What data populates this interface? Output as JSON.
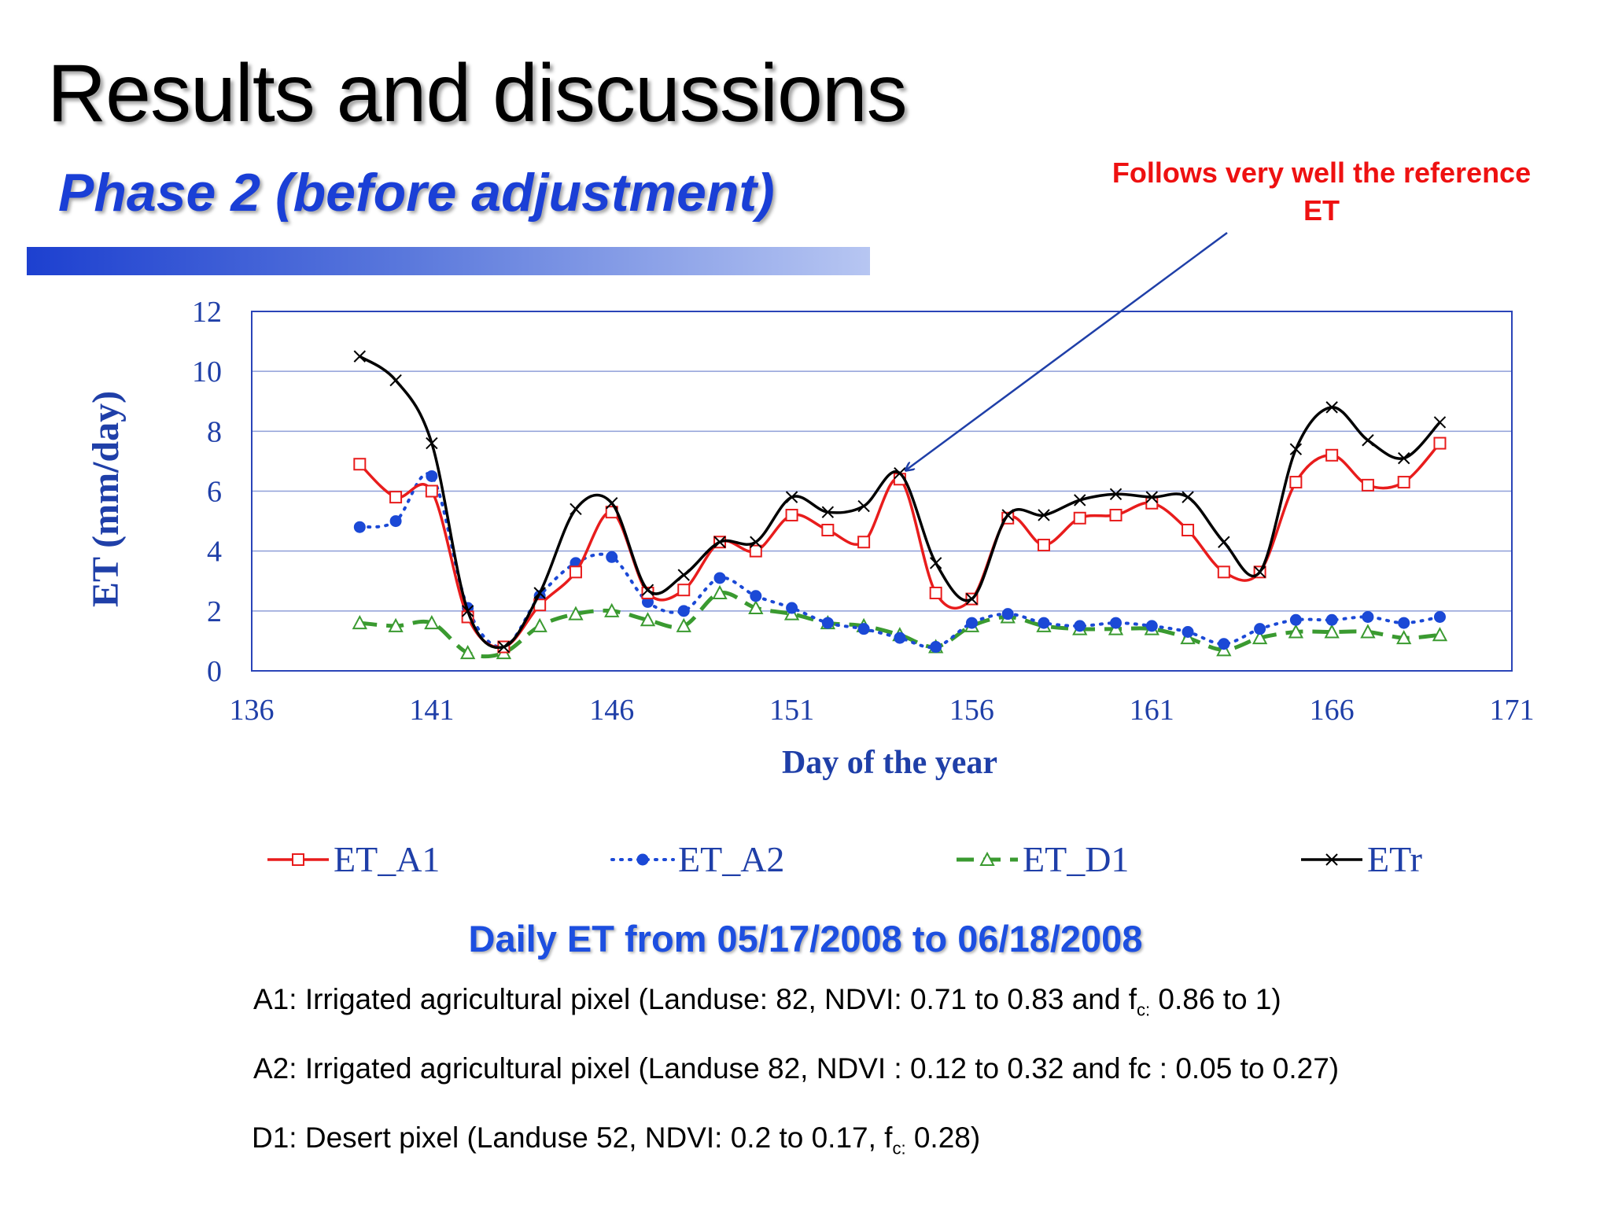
{
  "slide": {
    "title": "Results and discussions",
    "subtitle": "Phase 2 (before adjustment)"
  },
  "callout": {
    "line1": "Follows very well the reference",
    "line2": "ET"
  },
  "colors": {
    "title_blue": "#1a3fd6",
    "callout_red": "#ee1111",
    "axis_blue": "#1f3fa8",
    "et_a1": "#e81c1c",
    "et_a2": "#1b49d6",
    "et_d1": "#3a9a30",
    "etr": "#000000"
  },
  "chart_data": {
    "type": "line",
    "title": "Daily ET from 05/17/2008 to 06/18/2008",
    "xlabel": "Day of the year",
    "ylabel": "ET (mm/day)",
    "xlim": [
      136,
      171
    ],
    "ylim": [
      0,
      12
    ],
    "xticks": [
      136,
      141,
      146,
      151,
      156,
      161,
      166,
      171
    ],
    "yticks": [
      0,
      2,
      4,
      6,
      8,
      10,
      12
    ],
    "grid": true,
    "legend_position": "bottom",
    "x": [
      139,
      140,
      141,
      142,
      143,
      144,
      145,
      146,
      147,
      148,
      149,
      150,
      151,
      152,
      153,
      154,
      155,
      156,
      157,
      158,
      159,
      160,
      161,
      162,
      163,
      164,
      165,
      166,
      167,
      168,
      169
    ],
    "series": [
      {
        "name": "ET_A1",
        "marker": "square",
        "values": [
          6.9,
          5.8,
          6.0,
          1.8,
          0.8,
          2.2,
          3.3,
          5.3,
          2.6,
          2.7,
          4.3,
          4.0,
          5.2,
          4.7,
          4.3,
          6.4,
          2.6,
          2.4,
          5.1,
          4.2,
          5.1,
          5.2,
          5.6,
          4.7,
          3.3,
          3.3,
          6.3,
          7.2,
          6.2,
          6.3,
          7.6
        ]
      },
      {
        "name": "ET_A2",
        "marker": "circle",
        "values": [
          4.8,
          5.0,
          6.5,
          2.1,
          0.8,
          2.5,
          3.6,
          3.8,
          2.3,
          2.0,
          3.1,
          2.5,
          2.1,
          1.6,
          1.4,
          1.1,
          0.8,
          1.6,
          1.9,
          1.6,
          1.5,
          1.6,
          1.5,
          1.3,
          0.9,
          1.4,
          1.7,
          1.7,
          1.8,
          1.6,
          1.8
        ]
      },
      {
        "name": "ET_D1",
        "marker": "triangle",
        "values": [
          1.6,
          1.5,
          1.6,
          0.6,
          0.6,
          1.5,
          1.9,
          2.0,
          1.7,
          1.5,
          2.6,
          2.1,
          1.9,
          1.6,
          1.5,
          1.2,
          0.8,
          1.5,
          1.8,
          1.5,
          1.4,
          1.4,
          1.4,
          1.1,
          0.7,
          1.1,
          1.3,
          1.3,
          1.3,
          1.1,
          1.2
        ]
      },
      {
        "name": "ETr",
        "marker": "x",
        "values": [
          10.5,
          9.7,
          7.6,
          2.0,
          0.8,
          2.6,
          5.4,
          5.6,
          2.7,
          3.2,
          4.3,
          4.3,
          5.8,
          5.3,
          5.5,
          6.6,
          3.6,
          2.4,
          5.2,
          5.2,
          5.7,
          5.9,
          5.8,
          5.8,
          4.3,
          3.3,
          7.4,
          8.8,
          7.7,
          7.1,
          8.3
        ]
      }
    ]
  },
  "notes": {
    "a1_text": "A1: Irrigated agricultural pixel (Landuse: 82, NDVI: 0.71 to 0.83  and f",
    "a1_sub": "c:",
    "a1_tail": " 0.86 to 1)",
    "a2_text": "A2: Irrigated agricultural pixel (Landuse  82, NDVI : 0.12 to 0.32 and fc : 0.05 to 0.27)",
    "d1_text": "D1: Desert pixel (Landuse 52, NDVI: 0.2 to 0.17, f",
    "d1_sub": "c:",
    "d1_tail": " 0.28)"
  }
}
